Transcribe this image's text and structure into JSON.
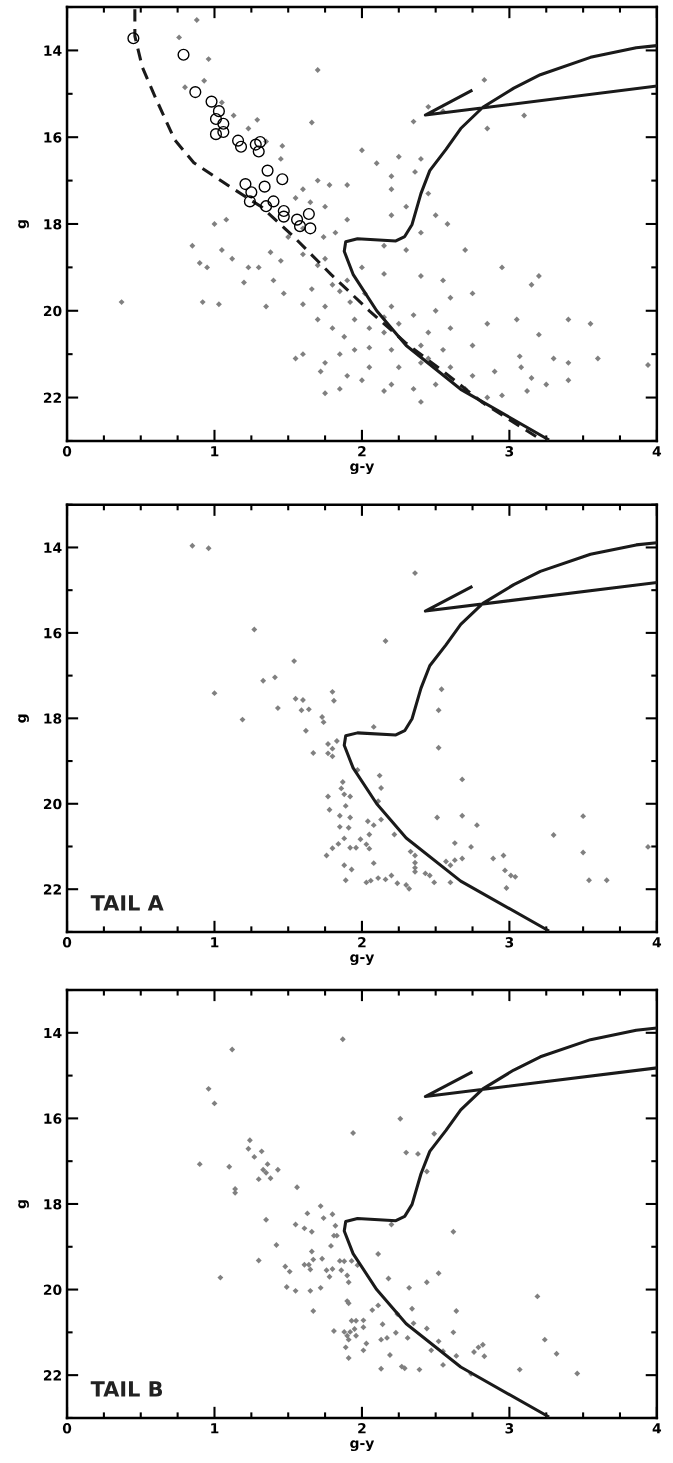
{
  "chart_data": [
    {
      "type": "scatter",
      "xlabel": "g-y",
      "ylabel": "g",
      "xlim": [
        0,
        4
      ],
      "ylim": [
        23,
        13
      ],
      "xticks": [
        0,
        1,
        2,
        3,
        4
      ],
      "yticks": [
        14,
        16,
        18,
        20,
        22
      ],
      "grid": false,
      "series": [
        {
          "marker": "diamond",
          "color": "#808080",
          "x": [
            0.88,
            0.76,
            0.96,
            1.7,
            0.8,
            0.93,
            2.83,
            1.05,
            1.13,
            1.66,
            2.35,
            2.45,
            2.55,
            3.1,
            2.85,
            1.23,
            1.29,
            1.35,
            1.46,
            1.45,
            2.0,
            2.25,
            2.1,
            2.4,
            2.36,
            2.2,
            1.7,
            1.6,
            1.78,
            1.9,
            2.2,
            2.45,
            2.3,
            1.55,
            1.65,
            1.75,
            2.2,
            2.5,
            2.58,
            1.9,
            1.82,
            1.74,
            2.4,
            2.15,
            2.3,
            2.7,
            1.75,
            1.6,
            1.45,
            1.3,
            1.12,
            0.85,
            0.95,
            1.05,
            1.0,
            1.08,
            0.9,
            1.2,
            1.23,
            1.4,
            1.47,
            1.35,
            0.37,
            0.92,
            1.03,
            1.6,
            1.66,
            1.8,
            1.9,
            2.0,
            2.15,
            2.4,
            2.55,
            2.95,
            3.2,
            3.15,
            2.75,
            2.6,
            2.5,
            2.35,
            2.2,
            2.02,
            1.92,
            1.75,
            1.7,
            1.8,
            1.88,
            1.95,
            2.05,
            2.15,
            2.25,
            2.45,
            2.6,
            2.85,
            3.05,
            3.4,
            3.55,
            3.2,
            2.75,
            2.55,
            2.4,
            2.2,
            2.05,
            1.85,
            1.75,
            1.6,
            1.55,
            1.72,
            1.9,
            2.05,
            2.25,
            2.4,
            2.6,
            2.75,
            2.9,
            3.08,
            3.3,
            3.4,
            3.6,
            3.94,
            3.25,
            3.4,
            3.12,
            2.85,
            2.7,
            2.5,
            2.35,
            2.2,
            2.0,
            1.85,
            2.15,
            2.4,
            1.75,
            2.95,
            3.15,
            3.07,
            2.45,
            1.95,
            2.15,
            1.85,
            1.7,
            1.6,
            1.5,
            1.38
          ],
          "values": [
            13.3,
            13.7,
            14.2,
            14.45,
            14.85,
            14.7,
            14.68,
            15.2,
            15.5,
            15.66,
            15.64,
            15.3,
            15.4,
            15.5,
            15.8,
            15.8,
            15.6,
            16.1,
            16.2,
            16.5,
            16.3,
            16.45,
            16.6,
            16.5,
            16.8,
            16.9,
            17.0,
            17.2,
            17.1,
            17.1,
            17.2,
            17.3,
            17.6,
            17.4,
            17.5,
            17.6,
            17.8,
            17.8,
            18.0,
            17.9,
            18.2,
            18.3,
            18.2,
            18.5,
            18.6,
            18.6,
            18.8,
            18.7,
            18.85,
            19.0,
            18.8,
            18.5,
            19.0,
            18.6,
            18.0,
            17.9,
            18.9,
            19.35,
            19.0,
            19.3,
            19.6,
            19.9,
            19.8,
            19.8,
            19.85,
            19.85,
            19.5,
            19.4,
            19.3,
            19.0,
            19.15,
            19.2,
            19.3,
            19.0,
            19.2,
            19.4,
            19.6,
            19.7,
            20.0,
            20.1,
            19.9,
            19.6,
            19.8,
            19.9,
            20.2,
            20.4,
            20.6,
            20.2,
            20.4,
            20.5,
            20.3,
            20.5,
            20.4,
            20.3,
            20.2,
            20.2,
            20.3,
            20.55,
            20.8,
            20.9,
            20.8,
            20.9,
            20.85,
            21.0,
            21.2,
            21.0,
            21.1,
            21.4,
            21.5,
            21.3,
            21.3,
            21.2,
            21.3,
            21.5,
            21.4,
            21.3,
            21.1,
            21.2,
            21.1,
            21.25,
            21.7,
            21.6,
            21.85,
            22.0,
            21.8,
            21.7,
            21.8,
            21.7,
            21.6,
            21.8,
            21.85,
            22.1,
            21.9,
            21.95,
            21.55,
            21.05,
            21.1,
            20.9,
            20.15,
            19.55,
            18.95,
            18.1,
            18.3,
            18.65
          ]
        },
        {
          "marker": "circle",
          "color": "#000000",
          "x": [
            0.45,
            0.79,
            0.87,
            0.98,
            1.03,
            1.01,
            1.06,
            1.01,
            1.06,
            1.16,
            1.18,
            1.28,
            1.31,
            1.3,
            1.36,
            1.46,
            1.21,
            1.34,
            1.25,
            1.4,
            1.24,
            1.35,
            1.47,
            1.47,
            1.56,
            1.64,
            1.58,
            1.65
          ],
          "values": [
            13.72,
            14.1,
            14.96,
            15.18,
            15.4,
            15.58,
            15.69,
            15.93,
            15.88,
            16.08,
            16.22,
            16.17,
            16.11,
            16.33,
            16.77,
            16.97,
            17.08,
            17.14,
            17.27,
            17.48,
            17.48,
            17.59,
            17.7,
            17.83,
            17.9,
            17.77,
            18.05,
            18.1
          ]
        },
        {
          "type": "line",
          "line_style": "solid",
          "color": "#1a1a1a",
          "x": [
            3.26,
            2.67,
            2.3,
            2.1,
            1.94,
            1.88,
            1.89,
            1.97,
            2.23,
            2.29,
            2.34,
            2.4,
            2.46,
            2.57,
            2.67,
            2.82,
            3.03,
            3.21,
            3.55,
            3.86,
            4.0,
            null,
            4.0,
            2.43,
            2.74
          ],
          "values": [
            22.96,
            21.81,
            20.8,
            20.0,
            19.16,
            18.63,
            18.41,
            18.34,
            18.39,
            18.29,
            18.01,
            17.3,
            16.77,
            16.28,
            15.8,
            15.31,
            14.87,
            14.56,
            14.16,
            13.94,
            13.89,
            null,
            14.82,
            15.49,
            14.93
          ]
        },
        {
          "type": "line",
          "line_style": "dashed",
          "color": "#1a1a1a",
          "x": [
            0.46,
            0.46,
            0.51,
            0.6,
            0.73,
            0.86,
            1.06,
            1.32,
            1.53,
            1.79,
            2.05,
            2.3,
            2.56,
            2.82,
            3.21
          ],
          "values": [
            13.05,
            13.67,
            14.38,
            15.09,
            16.06,
            16.59,
            17.04,
            17.61,
            18.27,
            19.16,
            20.0,
            20.75,
            21.42,
            22.12,
            22.96
          ]
        }
      ]
    },
    {
      "type": "scatter",
      "xlabel": "g-y",
      "ylabel": "g",
      "xlim": [
        0,
        4
      ],
      "ylim": [
        23,
        13
      ],
      "xticks": [
        0,
        1,
        2,
        3,
        4
      ],
      "yticks": [
        14,
        16,
        18,
        20,
        22
      ],
      "grid": false,
      "annotations": [
        "TAIL A"
      ],
      "series": [
        {
          "marker": "diamond",
          "color": "#808080",
          "x": [
            0.85,
            0.96,
            2.36,
            1.27,
            2.16,
            1.54,
            1.33,
            1.41,
            1.0,
            1.8,
            2.54,
            1.55,
            1.6,
            1.81,
            1.43,
            1.59,
            1.64,
            2.52,
            1.19,
            1.73,
            1.74,
            2.08,
            1.62,
            1.83,
            1.77,
            1.8,
            2.52,
            1.67,
            1.77,
            1.8,
            1.97,
            2.12,
            2.68,
            1.87,
            2.13,
            1.86,
            1.88,
            1.92,
            1.77,
            2.11,
            1.89,
            1.78,
            1.85,
            1.92,
            2.51,
            2.68,
            3.5,
            2.04,
            2.13,
            2.08,
            2.78,
            1.85,
            1.91,
            2.22,
            3.3,
            2.05,
            1.88,
            1.99,
            2.03,
            1.84,
            1.96,
            1.92,
            1.8,
            2.05,
            2.63,
            2.74,
            3.5,
            3.94,
            2.33,
            2.36,
            1.76,
            2.68,
            2.89,
            2.96,
            2.63,
            2.57,
            2.6,
            2.36,
            2.36,
            2.08,
            1.88,
            1.93,
            2.36,
            2.43,
            2.46,
            2.97,
            3.01,
            3.04,
            2.98,
            2.11,
            2.16,
            2.2,
            2.06,
            2.03,
            1.89,
            2.24,
            2.3,
            2.32,
            2.49,
            2.6,
            3.54,
            3.66
          ],
          "values": [
            13.96,
            14.02,
            14.6,
            15.92,
            16.19,
            16.66,
            17.12,
            17.04,
            17.41,
            17.38,
            17.32,
            17.54,
            17.57,
            17.59,
            17.76,
            17.81,
            17.79,
            17.81,
            18.03,
            17.97,
            18.09,
            18.2,
            18.29,
            18.53,
            18.6,
            18.71,
            18.69,
            18.81,
            18.82,
            18.89,
            19.21,
            19.34,
            19.43,
            19.49,
            19.63,
            19.64,
            19.78,
            19.83,
            19.83,
            19.94,
            20.05,
            20.14,
            20.28,
            20.32,
            20.32,
            20.28,
            20.29,
            20.41,
            20.37,
            20.5,
            20.5,
            20.54,
            20.56,
            20.72,
            20.73,
            20.72,
            20.81,
            20.83,
            20.95,
            20.94,
            21.03,
            21.03,
            21.04,
            21.05,
            20.92,
            21.01,
            21.14,
            21.01,
            21.12,
            21.21,
            21.21,
            21.28,
            21.28,
            21.21,
            21.32,
            21.35,
            21.44,
            21.38,
            21.5,
            21.39,
            21.44,
            21.54,
            21.59,
            21.63,
            21.68,
            21.56,
            21.68,
            21.71,
            21.97,
            21.74,
            21.77,
            21.68,
            21.8,
            21.84,
            21.79,
            21.86,
            21.9,
            21.99,
            21.84,
            21.84,
            21.79,
            21.79
          ]
        },
        {
          "type": "line",
          "line_style": "solid",
          "color": "#1a1a1a",
          "x": [
            3.26,
            2.67,
            2.3,
            2.1,
            1.94,
            1.88,
            1.89,
            1.97,
            2.23,
            2.29,
            2.34,
            2.4,
            2.46,
            2.57,
            2.67,
            2.82,
            3.03,
            3.21,
            3.55,
            3.86,
            4.0,
            null,
            4.0,
            2.43,
            2.74
          ],
          "values": [
            22.96,
            21.81,
            20.8,
            20.0,
            19.16,
            18.63,
            18.41,
            18.34,
            18.39,
            18.29,
            18.01,
            17.3,
            16.77,
            16.28,
            15.8,
            15.31,
            14.87,
            14.56,
            14.16,
            13.94,
            13.89,
            null,
            14.82,
            15.49,
            14.93
          ]
        }
      ]
    },
    {
      "type": "scatter",
      "xlabel": "g-y",
      "ylabel": "g",
      "xlim": [
        0,
        4
      ],
      "ylim": [
        23,
        13
      ],
      "xticks": [
        0,
        1,
        2,
        3,
        4
      ],
      "yticks": [
        14,
        16,
        18,
        20,
        22
      ],
      "grid": false,
      "annotations": [
        "TAIL B"
      ],
      "series": [
        {
          "marker": "diamond",
          "color": "#808080",
          "x": [
            1.87,
            1.12,
            0.96,
            1.0,
            2.26,
            1.94,
            2.49,
            1.24,
            1.23,
            1.32,
            1.27,
            2.3,
            2.38,
            0.9,
            1.1,
            1.36,
            1.33,
            1.35,
            1.43,
            1.3,
            1.38,
            2.44,
            1.14,
            1.14,
            1.56,
            1.72,
            1.63,
            1.8,
            1.74,
            1.35,
            1.55,
            1.82,
            1.61,
            1.66,
            2.2,
            2.62,
            1.81,
            1.83,
            1.42,
            1.79,
            1.66,
            2.11,
            1.3,
            1.61,
            1.64,
            1.67,
            1.73,
            1.85,
            1.88,
            1.93,
            1.97,
            1.48,
            1.51,
            1.65,
            1.76,
            1.8,
            1.86,
            1.9,
            1.78,
            1.04,
            2.18,
            2.52,
            2.44,
            1.49,
            1.55,
            1.65,
            1.72,
            1.91,
            2.32,
            3.19,
            1.9,
            1.91,
            2.11,
            2.07,
            1.67,
            2.34,
            2.64,
            2.24,
            1.93,
            1.96,
            2.01,
            2.14,
            2.35,
            2.01,
            1.81,
            1.88,
            1.92,
            1.95,
            2.44,
            2.62,
            2.23,
            1.9,
            1.96,
            2.17,
            2.13,
            2.31,
            2.52,
            1.91,
            3.24,
            2.03,
            2.82,
            2.79,
            1.89,
            2.47,
            2.55,
            2.01,
            2.76,
            2.83,
            3.32,
            2.19,
            2.64,
            1.91,
            2.55,
            2.13,
            2.27,
            2.29,
            2.39,
            3.07,
            2.74,
            3.46
          ],
          "values": [
            14.15,
            14.39,
            15.31,
            15.65,
            16.01,
            16.34,
            16.36,
            16.51,
            16.71,
            16.77,
            16.9,
            16.8,
            16.83,
            17.07,
            17.13,
            17.07,
            17.2,
            17.27,
            17.2,
            17.42,
            17.4,
            17.24,
            17.65,
            17.74,
            17.61,
            18.05,
            18.22,
            18.24,
            18.33,
            18.37,
            18.48,
            18.51,
            18.57,
            18.65,
            18.48,
            18.65,
            18.74,
            18.74,
            18.96,
            18.98,
            19.11,
            19.17,
            19.32,
            19.42,
            19.42,
            19.3,
            19.28,
            19.33,
            19.34,
            19.33,
            19.43,
            19.46,
            19.58,
            19.53,
            19.55,
            19.52,
            19.55,
            19.67,
            19.7,
            19.72,
            19.74,
            19.62,
            19.83,
            19.94,
            20.03,
            20.03,
            19.96,
            19.83,
            19.96,
            20.16,
            20.27,
            20.32,
            20.37,
            20.48,
            20.5,
            20.45,
            20.5,
            20.57,
            20.73,
            20.73,
            20.72,
            20.81,
            20.79,
            20.88,
            20.97,
            20.99,
            20.99,
            20.92,
            20.91,
            21.0,
            21.01,
            21.08,
            21.08,
            21.13,
            21.17,
            21.13,
            21.21,
            21.17,
            21.17,
            21.26,
            21.29,
            21.35,
            21.35,
            21.42,
            21.44,
            21.42,
            21.46,
            21.56,
            21.5,
            21.53,
            21.55,
            21.6,
            21.76,
            21.85,
            21.8,
            21.84,
            21.87,
            21.87,
            21.97,
            21.96
          ]
        },
        {
          "type": "line",
          "line_style": "solid",
          "color": "#1a1a1a",
          "x": [
            3.26,
            2.67,
            2.3,
            2.1,
            1.94,
            1.88,
            1.89,
            1.97,
            2.23,
            2.29,
            2.34,
            2.4,
            2.46,
            2.57,
            2.67,
            2.82,
            3.03,
            3.21,
            3.55,
            3.86,
            4.0,
            null,
            4.0,
            2.43,
            2.74
          ],
          "values": [
            22.96,
            21.81,
            20.8,
            20.0,
            19.16,
            18.63,
            18.41,
            18.34,
            18.39,
            18.29,
            18.01,
            17.3,
            16.77,
            16.28,
            15.8,
            15.31,
            14.87,
            14.56,
            14.16,
            13.94,
            13.89,
            null,
            14.82,
            15.49,
            14.93
          ]
        }
      ]
    }
  ]
}
